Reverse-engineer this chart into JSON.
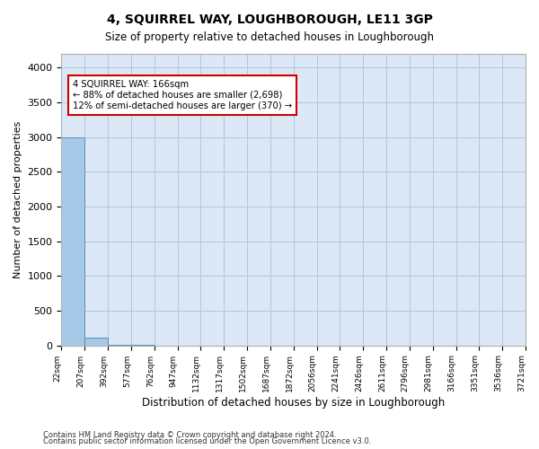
{
  "title": "4, SQUIRREL WAY, LOUGHBOROUGH, LE11 3GP",
  "subtitle": "Size of property relative to detached houses in Loughborough",
  "xlabel": "Distribution of detached houses by size in Loughborough",
  "ylabel": "Number of detached properties",
  "bar_values": [
    3000,
    110,
    5,
    2,
    1,
    1,
    0,
    0,
    0,
    0,
    0,
    0,
    0,
    0,
    0,
    0,
    0,
    0,
    0,
    0
  ],
  "bar_color": "#a8c8e8",
  "bar_edge_color": "#5090c0",
  "x_labels": [
    "22sqm",
    "207sqm",
    "392sqm",
    "577sqm",
    "762sqm",
    "947sqm",
    "1132sqm",
    "1317sqm",
    "1502sqm",
    "1687sqm",
    "1872sqm",
    "2056sqm",
    "2241sqm",
    "2426sqm",
    "2611sqm",
    "2796sqm",
    "2981sqm",
    "3166sqm",
    "3351sqm",
    "3536sqm",
    "3721sqm"
  ],
  "ylim": [
    0,
    4200
  ],
  "yticks": [
    0,
    500,
    1000,
    1500,
    2000,
    2500,
    3000,
    3500,
    4000
  ],
  "annotation_text": "4 SQUIRREL WAY: 166sqm\n← 88% of detached houses are smaller (2,698)\n12% of semi-detached houses are larger (370) →",
  "annotation_box_color": "#ffffff",
  "annotation_box_edge": "#cc0000",
  "bg_color": "#dce8f5",
  "footer_line1": "Contains HM Land Registry data © Crown copyright and database right 2024.",
  "footer_line2": "Contains public sector information licensed under the Open Government Licence v3.0."
}
